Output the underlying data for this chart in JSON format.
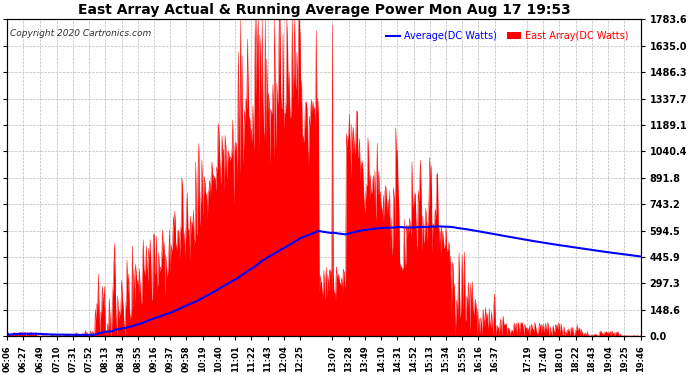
{
  "title": "East Array Actual & Running Average Power Mon Aug 17 19:53",
  "copyright": "Copyright 2020 Cartronics.com",
  "legend_avg": "Average(DC Watts)",
  "legend_east": "East Array(DC Watts)",
  "yticks": [
    0.0,
    148.6,
    297.3,
    445.9,
    594.5,
    743.2,
    891.8,
    1040.4,
    1189.1,
    1337.7,
    1486.3,
    1635.0,
    1783.6
  ],
  "ymax": 1783.6,
  "bg_color": "#ffffff",
  "grid_color": "#aaaaaa",
  "fill_color": "#ff0000",
  "avg_color": "#0000ff",
  "east_color": "#ff0000",
  "title_color": "#000000",
  "copyright_color": "#333333",
  "avg_label_color": "#0000ff",
  "east_label_color": "#ff0000",
  "xtick_labels": [
    "06:06",
    "06:27",
    "06:49",
    "07:10",
    "07:31",
    "07:52",
    "08:13",
    "08:34",
    "08:55",
    "09:16",
    "09:37",
    "09:58",
    "10:19",
    "10:40",
    "11:01",
    "11:22",
    "11:43",
    "12:04",
    "12:25",
    "13:07",
    "13:28",
    "13:49",
    "14:10",
    "14:31",
    "14:52",
    "15:13",
    "15:34",
    "15:55",
    "16:16",
    "16:37",
    "17:19",
    "17:40",
    "18:01",
    "18:22",
    "18:43",
    "19:04",
    "19:25",
    "19:46"
  ]
}
